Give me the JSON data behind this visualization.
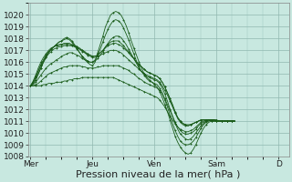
{
  "bg_color": "#c8e8e0",
  "plot_bg_color": "#c8e8e0",
  "grid_color": "#90b8b0",
  "line_color": "#1a5c1a",
  "marker_color": "#1a5c1a",
  "ylim": [
    1008,
    1021
  ],
  "yticks": [
    1008,
    1009,
    1010,
    1011,
    1012,
    1013,
    1014,
    1015,
    1016,
    1017,
    1018,
    1019,
    1020
  ],
  "xlabel": "Pression niveau de la mer( hPa )",
  "xlabel_fontsize": 8,
  "tick_fontsize": 6.5,
  "day_labels": [
    "Mer",
    "Jeu",
    "Ven",
    "Sam",
    "D"
  ],
  "day_positions": [
    0,
    24,
    48,
    72,
    96
  ],
  "xlim": [
    -1,
    100
  ],
  "series": [
    [
      1014.0,
      1014.2,
      1014.5,
      1015.0,
      1015.5,
      1016.0,
      1016.4,
      1016.8,
      1017.1,
      1017.3,
      1017.5,
      1017.7,
      1017.8,
      1018.0,
      1018.1,
      1018.0,
      1017.8,
      1017.5,
      1017.2,
      1016.8,
      1016.5,
      1016.2,
      1016.0,
      1015.8,
      1015.7,
      1016.0,
      1016.8,
      1017.5,
      1018.2,
      1019.0,
      1019.5,
      1020.0,
      1020.2,
      1020.3,
      1020.2,
      1020.0,
      1019.6,
      1019.1,
      1018.5,
      1017.8,
      1017.2,
      1016.6,
      1016.0,
      1015.5,
      1015.0,
      1014.7,
      1014.5,
      1014.3,
      1014.1,
      1013.9,
      1013.5,
      1013.0,
      1012.4,
      1011.8,
      1011.1,
      1010.4,
      1009.7,
      1009.2,
      1008.8,
      1008.5,
      1008.3,
      1008.2,
      1008.3,
      1008.6,
      1009.0,
      1009.5,
      1010.0,
      1010.4,
      1010.7,
      1010.9,
      1011.0,
      1011.1,
      1011.1,
      1011.0,
      1011.0,
      1011.0,
      1011.0,
      1011.0,
      1011.0,
      1011.0
    ],
    [
      1014.0,
      1014.3,
      1014.7,
      1015.2,
      1015.7,
      1016.1,
      1016.5,
      1016.8,
      1017.1,
      1017.3,
      1017.5,
      1017.7,
      1017.8,
      1017.9,
      1018.0,
      1017.9,
      1017.7,
      1017.4,
      1017.1,
      1016.8,
      1016.5,
      1016.3,
      1016.1,
      1016.0,
      1016.0,
      1016.2,
      1016.6,
      1017.1,
      1017.7,
      1018.3,
      1018.8,
      1019.2,
      1019.5,
      1019.6,
      1019.5,
      1019.3,
      1018.9,
      1018.4,
      1017.9,
      1017.3,
      1016.7,
      1016.1,
      1015.6,
      1015.2,
      1014.9,
      1014.6,
      1014.4,
      1014.3,
      1014.2,
      1014.1,
      1013.8,
      1013.4,
      1012.8,
      1012.2,
      1011.5,
      1010.8,
      1010.2,
      1009.7,
      1009.3,
      1009.1,
      1009.0,
      1009.0,
      1009.1,
      1009.3,
      1009.6,
      1010.0,
      1010.4,
      1010.7,
      1010.9,
      1011.0,
      1011.1,
      1011.1,
      1011.1,
      1011.0,
      1011.0,
      1011.0,
      1011.0,
      1011.0,
      1011.0,
      1011.0
    ],
    [
      1014.0,
      1014.1,
      1014.3,
      1014.6,
      1014.9,
      1015.2,
      1015.5,
      1015.7,
      1015.9,
      1016.0,
      1016.2,
      1016.3,
      1016.5,
      1016.6,
      1016.7,
      1016.8,
      1016.8,
      1016.7,
      1016.6,
      1016.5,
      1016.3,
      1016.2,
      1016.1,
      1016.0,
      1016.0,
      1016.1,
      1016.3,
      1016.6,
      1016.9,
      1017.3,
      1017.6,
      1017.9,
      1018.1,
      1018.2,
      1018.2,
      1018.1,
      1017.8,
      1017.5,
      1017.1,
      1016.7,
      1016.3,
      1015.9,
      1015.5,
      1015.2,
      1015.0,
      1014.8,
      1014.7,
      1014.6,
      1014.5,
      1014.4,
      1014.2,
      1013.8,
      1013.3,
      1012.7,
      1012.0,
      1011.4,
      1010.8,
      1010.3,
      1009.9,
      1009.7,
      1009.5,
      1009.4,
      1009.5,
      1009.7,
      1010.0,
      1010.3,
      1010.6,
      1010.8,
      1011.0,
      1011.1,
      1011.1,
      1011.1,
      1011.0,
      1011.0,
      1011.0,
      1011.0,
      1011.0,
      1011.0,
      1011.0,
      1011.0
    ],
    [
      1014.0,
      1014.0,
      1014.1,
      1014.2,
      1014.4,
      1014.6,
      1014.8,
      1015.0,
      1015.1,
      1015.2,
      1015.3,
      1015.4,
      1015.5,
      1015.6,
      1015.6,
      1015.7,
      1015.7,
      1015.7,
      1015.7,
      1015.7,
      1015.6,
      1015.6,
      1015.5,
      1015.5,
      1015.5,
      1015.5,
      1015.6,
      1015.6,
      1015.7,
      1015.7,
      1015.7,
      1015.7,
      1015.7,
      1015.7,
      1015.7,
      1015.6,
      1015.5,
      1015.4,
      1015.3,
      1015.1,
      1015.0,
      1014.8,
      1014.6,
      1014.5,
      1014.3,
      1014.2,
      1014.1,
      1014.0,
      1013.9,
      1013.8,
      1013.6,
      1013.3,
      1012.9,
      1012.4,
      1011.9,
      1011.4,
      1010.9,
      1010.5,
      1010.2,
      1010.0,
      1009.9,
      1009.9,
      1010.0,
      1010.1,
      1010.3,
      1010.6,
      1010.8,
      1010.9,
      1011.0,
      1011.1,
      1011.1,
      1011.1,
      1011.0,
      1011.0,
      1011.0,
      1011.0,
      1011.0,
      1011.0,
      1011.0,
      1011.0
    ],
    [
      1014.0,
      1014.0,
      1014.0,
      1014.0,
      1014.0,
      1014.1,
      1014.1,
      1014.2,
      1014.2,
      1014.2,
      1014.3,
      1014.3,
      1014.3,
      1014.4,
      1014.4,
      1014.5,
      1014.5,
      1014.6,
      1014.6,
      1014.6,
      1014.7,
      1014.7,
      1014.7,
      1014.7,
      1014.7,
      1014.7,
      1014.7,
      1014.7,
      1014.7,
      1014.7,
      1014.7,
      1014.7,
      1014.7,
      1014.6,
      1014.5,
      1014.4,
      1014.3,
      1014.2,
      1014.1,
      1014.0,
      1013.9,
      1013.8,
      1013.7,
      1013.6,
      1013.5,
      1013.4,
      1013.3,
      1013.2,
      1013.1,
      1013.0,
      1012.8,
      1012.5,
      1012.2,
      1011.8,
      1011.4,
      1011.1,
      1010.8,
      1010.5,
      1010.3,
      1010.2,
      1010.1,
      1010.1,
      1010.2,
      1010.3,
      1010.5,
      1010.7,
      1010.9,
      1011.0,
      1011.1,
      1011.1,
      1011.1,
      1011.1,
      1011.0,
      1011.0,
      1011.0,
      1011.0,
      1011.0,
      1011.0,
      1011.0,
      1011.0
    ],
    [
      1014.0,
      1014.2,
      1014.5,
      1015.0,
      1015.5,
      1016.0,
      1016.4,
      1016.7,
      1016.9,
      1017.1,
      1017.2,
      1017.3,
      1017.3,
      1017.4,
      1017.4,
      1017.4,
      1017.4,
      1017.3,
      1017.2,
      1017.1,
      1016.9,
      1016.8,
      1016.6,
      1016.5,
      1016.4,
      1016.4,
      1016.5,
      1016.6,
      1016.7,
      1016.8,
      1016.9,
      1017.0,
      1017.0,
      1017.0,
      1016.9,
      1016.8,
      1016.6,
      1016.4,
      1016.2,
      1016.0,
      1015.8,
      1015.6,
      1015.4,
      1015.2,
      1015.0,
      1014.9,
      1014.8,
      1014.7,
      1014.6,
      1014.5,
      1014.3,
      1014.0,
      1013.6,
      1013.2,
      1012.7,
      1012.2,
      1011.7,
      1011.3,
      1011.0,
      1010.8,
      1010.7,
      1010.6,
      1010.7,
      1010.8,
      1010.9,
      1011.0,
      1011.1,
      1011.1,
      1011.1,
      1011.1,
      1011.1,
      1011.0,
      1011.0,
      1011.0,
      1011.0,
      1011.0,
      1011.0,
      1011.0,
      1011.0,
      1011.0
    ],
    [
      1014.0,
      1014.3,
      1014.8,
      1015.3,
      1015.8,
      1016.2,
      1016.6,
      1016.9,
      1017.1,
      1017.3,
      1017.4,
      1017.5,
      1017.5,
      1017.6,
      1017.6,
      1017.6,
      1017.5,
      1017.4,
      1017.3,
      1017.1,
      1017.0,
      1016.8,
      1016.7,
      1016.6,
      1016.5,
      1016.5,
      1016.6,
      1016.8,
      1017.0,
      1017.2,
      1017.4,
      1017.5,
      1017.6,
      1017.6,
      1017.5,
      1017.4,
      1017.2,
      1017.0,
      1016.8,
      1016.5,
      1016.3,
      1016.0,
      1015.8,
      1015.6,
      1015.4,
      1015.2,
      1015.1,
      1015.0,
      1014.9,
      1014.8,
      1014.6,
      1014.3,
      1013.9,
      1013.4,
      1012.9,
      1012.3,
      1011.7,
      1011.2,
      1010.9,
      1010.7,
      1010.6,
      1010.6,
      1010.7,
      1010.8,
      1010.9,
      1011.0,
      1011.1,
      1011.1,
      1011.1,
      1011.1,
      1011.0,
      1011.0,
      1011.0,
      1011.0,
      1011.0,
      1011.0,
      1011.0,
      1011.0,
      1011.0,
      1011.0
    ],
    [
      1014.0,
      1014.4,
      1014.9,
      1015.5,
      1016.0,
      1016.4,
      1016.7,
      1017.0,
      1017.2,
      1017.3,
      1017.4,
      1017.4,
      1017.5,
      1017.5,
      1017.5,
      1017.5,
      1017.4,
      1017.4,
      1017.3,
      1017.2,
      1017.0,
      1016.9,
      1016.7,
      1016.6,
      1016.5,
      1016.5,
      1016.6,
      1016.8,
      1017.0,
      1017.3,
      1017.5,
      1017.7,
      1017.8,
      1017.8,
      1017.8,
      1017.6,
      1017.4,
      1017.1,
      1016.9,
      1016.6,
      1016.3,
      1016.0,
      1015.8,
      1015.6,
      1015.4,
      1015.2,
      1015.1,
      1015.0,
      1014.9,
      1014.8,
      1014.6,
      1014.3,
      1013.9,
      1013.4,
      1012.9,
      1012.4,
      1011.8,
      1011.3,
      1011.0,
      1010.8,
      1010.7,
      1010.7,
      1010.7,
      1010.8,
      1010.9,
      1011.0,
      1011.1,
      1011.1,
      1011.1,
      1011.1,
      1011.0,
      1011.0,
      1011.0,
      1011.0,
      1011.0,
      1011.0,
      1011.0,
      1011.0,
      1011.0,
      1011.0
    ]
  ]
}
